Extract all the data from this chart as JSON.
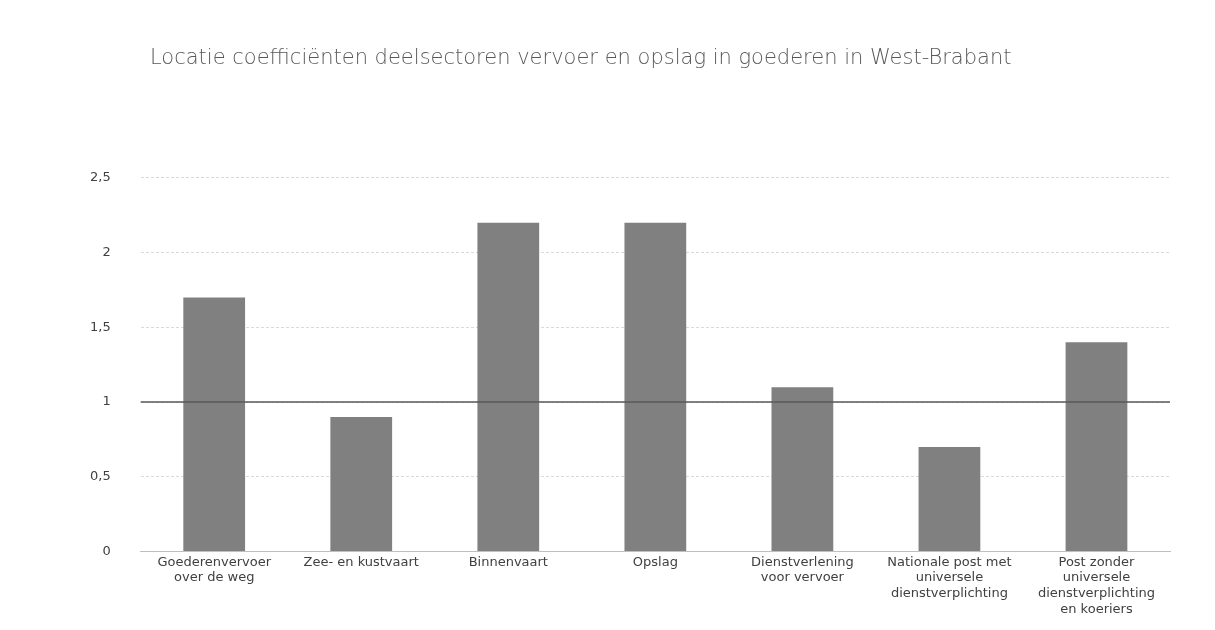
{
  "chart_data": {
    "type": "bar",
    "title": "Locatie coefficiënten deelsectoren vervoer en opslag in goederen in West-Brabant",
    "categories": [
      "Goederenvervoer over de weg",
      "Zee- en kustvaart",
      "Binnenvaart",
      "Opslag",
      "Dienstverlening voor vervoer",
      "Nationale post met universele dienstverplichting",
      "Post zonder universele dienstverplichting en koeriers"
    ],
    "values": [
      1.7,
      0.9,
      2.2,
      2.2,
      1.1,
      0.7,
      1.4
    ],
    "color": "#808080",
    "ylim": [
      0,
      2.5
    ],
    "yticks": [
      {
        "value": 0,
        "label": "0"
      },
      {
        "value": 0.5,
        "label": "0,5"
      },
      {
        "value": 1,
        "label": "1"
      },
      {
        "value": 1.5,
        "label": "1,5"
      },
      {
        "value": 2,
        "label": "2"
      },
      {
        "value": 2.5,
        "label": "2,5"
      }
    ],
    "grid": "y",
    "legend": false,
    "ref_lines": [
      {
        "axis": "y",
        "value": 1,
        "label": null,
        "color": "#595959"
      }
    ]
  }
}
